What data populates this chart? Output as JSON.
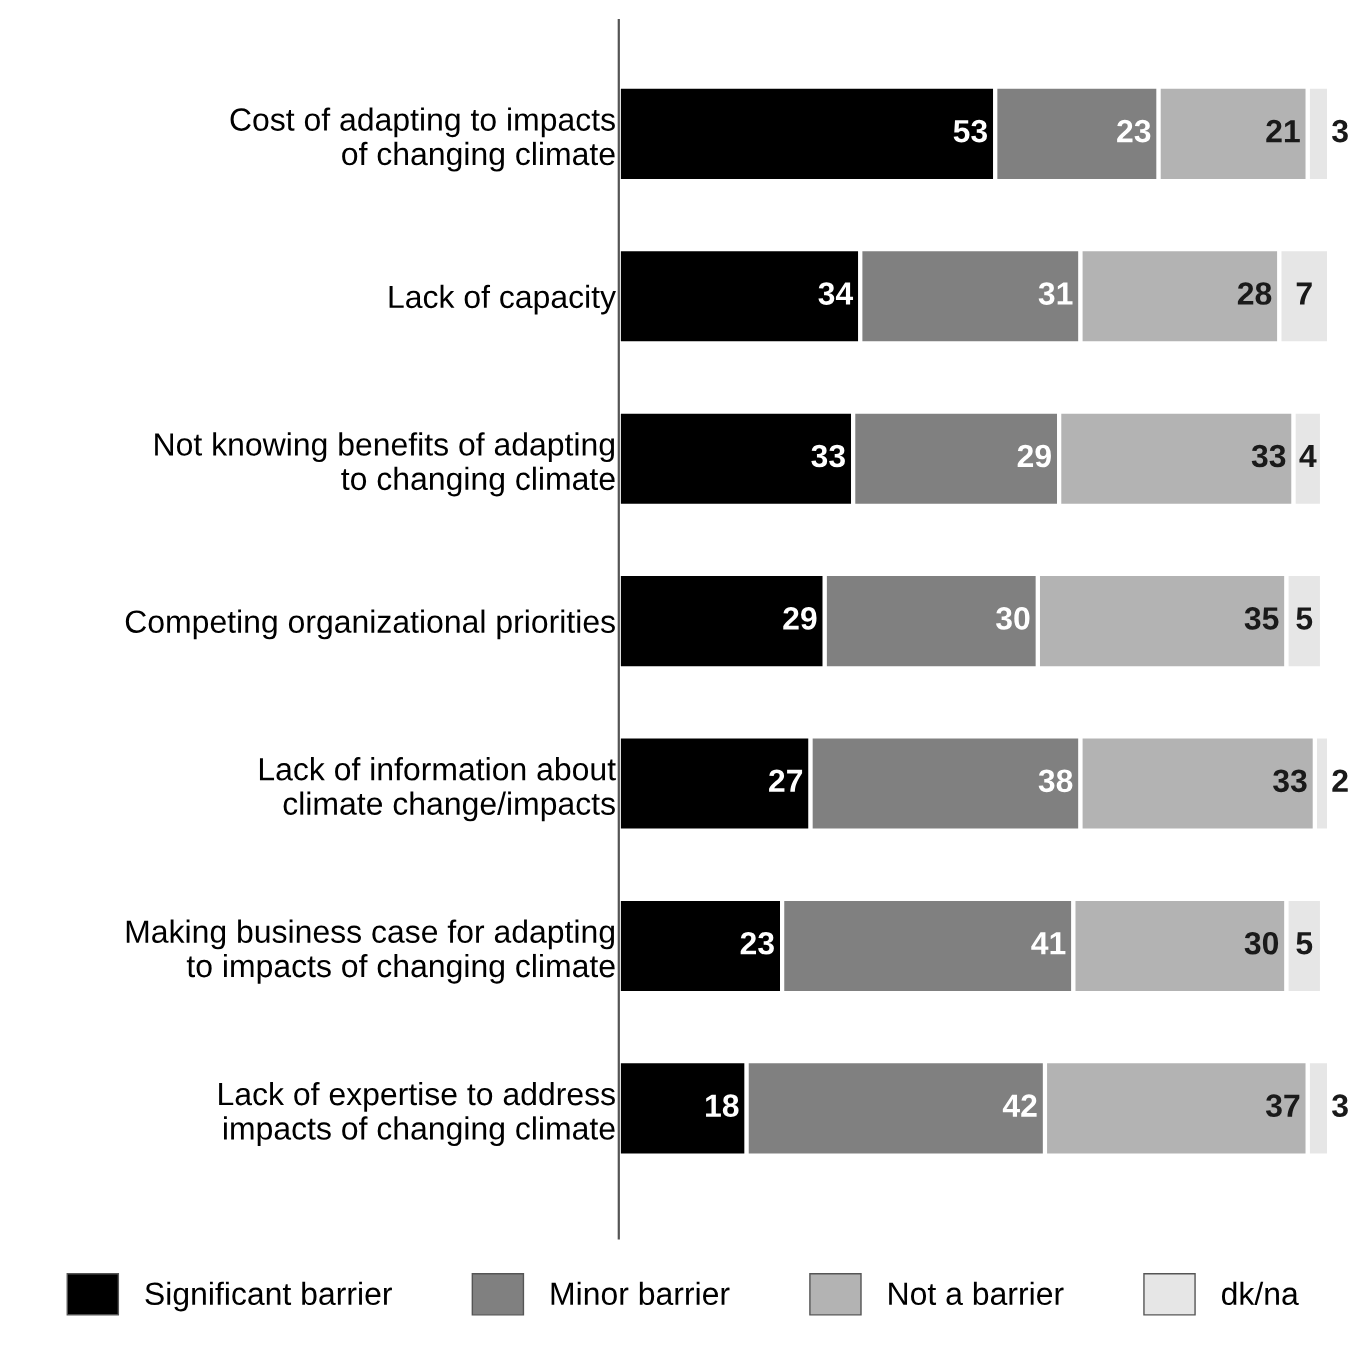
{
  "chart_data": {
    "type": "bar",
    "orientation": "horizontal",
    "stacked": true,
    "data_labels": true,
    "legend": "bottom",
    "grid": false,
    "tick_labels": "y",
    "xlim": [
      0,
      100
    ],
    "categories": [
      "Cost of adapting to impacts\nof changing climate",
      "Lack of capacity",
      "Not knowing benefits of adapting\nto changing climate",
      "Competing organizational priorities",
      "Lack of information about\nclimate change/impacts",
      "Making business case for adapting\nto impacts of changing climate",
      "Lack of expertise to address\nimpacts of changing climate"
    ],
    "series": [
      {
        "name": "Significant barrier",
        "color": "#000000",
        "values": [
          53,
          34,
          33,
          29,
          27,
          23,
          18
        ]
      },
      {
        "name": "Minor barrier",
        "color": "#808080",
        "values": [
          23,
          31,
          29,
          30,
          38,
          41,
          42
        ]
      },
      {
        "name": "Not a barrier",
        "color": "#b3b3b3",
        "values": [
          21,
          28,
          33,
          35,
          33,
          30,
          37
        ]
      },
      {
        "name": "dk/na",
        "color": "#e6e6e6",
        "values": [
          3,
          7,
          4,
          5,
          2,
          5,
          3
        ]
      }
    ]
  }
}
